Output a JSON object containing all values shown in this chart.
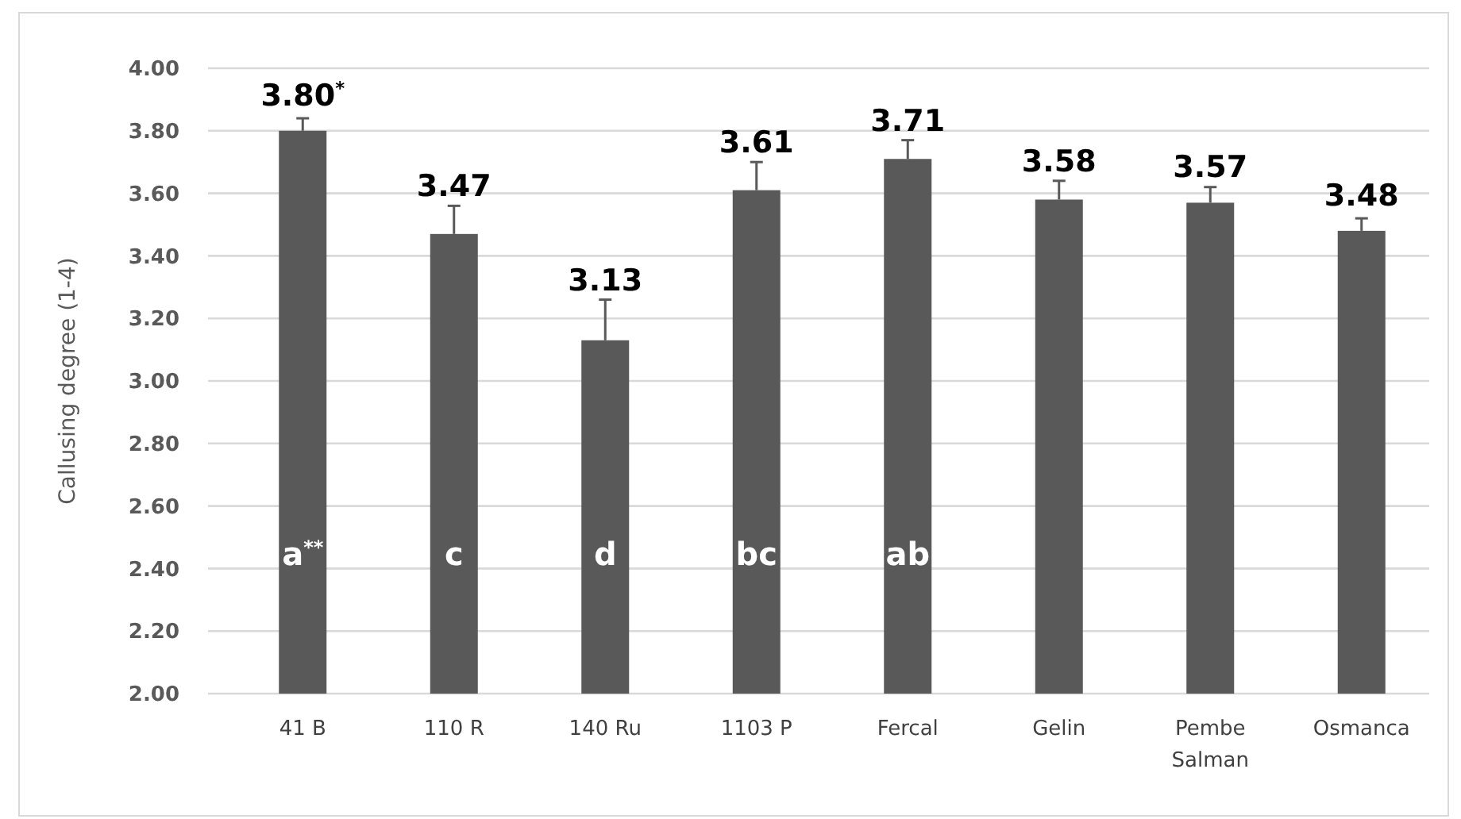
{
  "chart_data": {
    "type": "bar",
    "ylabel": "Callusing degree (1-4)",
    "categories": [
      "41 B",
      "110 R",
      "140 Ru",
      "1103 P",
      "Fercal",
      "Gelin",
      "Pembe Salman",
      "Osmanca"
    ],
    "values": [
      3.8,
      3.47,
      3.13,
      3.61,
      3.71,
      3.58,
      3.57,
      3.48
    ],
    "errors": [
      [
        3.8,
        3.84
      ],
      [
        3.47,
        3.56
      ],
      [
        3.13,
        3.26
      ],
      [
        3.61,
        3.7
      ],
      [
        3.71,
        3.77
      ],
      [
        3.58,
        3.64
      ],
      [
        3.57,
        3.62
      ],
      [
        3.48,
        3.52
      ]
    ],
    "value_labels": [
      "3.80$^{*}$",
      "3.47",
      "3.13",
      "3.61",
      "3.71",
      "3.58",
      "3.57",
      "3.48"
    ],
    "color": "#595959",
    "ylim": [
      2,
      4
    ],
    "yticks": [
      {
        "value": 2,
        "label": "2.00"
      },
      {
        "value": 2.2,
        "label": "2.20"
      },
      {
        "value": 2.4,
        "label": "2.40"
      },
      {
        "value": 2.6,
        "label": "2.60"
      },
      {
        "value": 2.8,
        "label": "2.80"
      },
      {
        "value": 3,
        "label": "3.00"
      },
      {
        "value": 3.2,
        "label": "3.20"
      },
      {
        "value": 3.4,
        "label": "3.40"
      },
      {
        "value": 3.6,
        "label": "3.60"
      },
      {
        "value": 3.8,
        "label": "3.80"
      },
      {
        "value": 4,
        "label": "4.00"
      }
    ],
    "grid": "y",
    "annotations": [
      "a$^{**}$",
      "c",
      "d",
      "bc",
      "ab"
    ]
  }
}
